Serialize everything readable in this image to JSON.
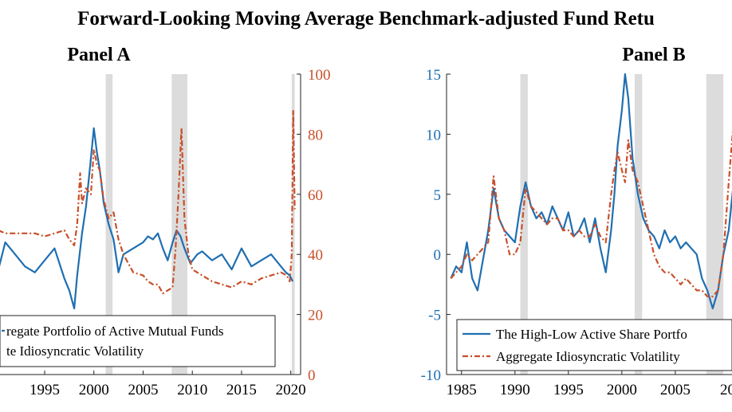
{
  "figure": {
    "title": "Forward-Looking Moving Average Benchmark-adjusted Fund Retu",
    "colors": {
      "blue": "#1f6fb2",
      "orange": "#c8502a",
      "recession": "#dcdcdc",
      "axis": "#222222"
    }
  },
  "chart_data": [
    {
      "type": "line",
      "panel_title": "Panel A",
      "x_ticks": [
        1995,
        2000,
        2005,
        2010,
        2015,
        2020
      ],
      "x_range": [
        1990.3,
        2021.0
      ],
      "y_left_range": [
        null,
        null
      ],
      "y_right_range": [
        0,
        100
      ],
      "y_right_ticks": [
        0,
        20,
        40,
        60,
        80,
        100
      ],
      "grid": false,
      "recession_bands": [
        [
          2001.2,
          2001.9
        ],
        [
          2007.9,
          2009.5
        ],
        [
          2020.1,
          2020.4
        ]
      ],
      "legend": {
        "placement": "bottom-left",
        "entries": [
          {
            "label": "regate Portfolio of Active Mutual Funds",
            "series": "blue"
          },
          {
            "label": "te Idiosyncratic Volatility",
            "series": "orange"
          }
        ]
      },
      "series": [
        {
          "color_key": "blue",
          "style": "solid",
          "axis": "right-scaled",
          "x": [
            1990.3,
            1991,
            1992,
            1993,
            1994,
            1995,
            1996,
            1997,
            1997.5,
            1998,
            1998.3,
            1998.8,
            1999.2,
            1999.7,
            2000,
            2000.3,
            2000.6,
            2001,
            2001.5,
            2002,
            2002.5,
            2003,
            2004,
            2005,
            2005.5,
            2006,
            2006.5,
            2007,
            2007.5,
            2008,
            2008.4,
            2008.8,
            2009.2,
            2009.8,
            2010.5,
            2011,
            2012,
            2013,
            2014,
            2015,
            2016,
            2017,
            2018,
            2019,
            2019.5,
            2019.9,
            2020.2
          ],
          "values": [
            35,
            44,
            40,
            36,
            34,
            38,
            42,
            32,
            28,
            22,
            33,
            47,
            56,
            72,
            82,
            74,
            68,
            57,
            50,
            45,
            34,
            40,
            42,
            44,
            46,
            45,
            47,
            42,
            38,
            44,
            48,
            46,
            42,
            37,
            40,
            41,
            38,
            40,
            35,
            42,
            36,
            38,
            40,
            36,
            34,
            33,
            31
          ]
        },
        {
          "color_key": "orange",
          "style": "dash-dot",
          "axis": "right",
          "x": [
            1990.3,
            1991,
            1992,
            1993,
            1994,
            1995,
            1996,
            1997,
            1997.5,
            1998,
            1998.3,
            1998.6,
            1998.8,
            1999.2,
            1999.7,
            2000,
            2000.3,
            2000.6,
            2001,
            2001.5,
            2002,
            2002.5,
            2003,
            2004,
            2005,
            2005.5,
            2006,
            2006.5,
            2007,
            2007.5,
            2008,
            2008.3,
            2008.6,
            2008.9,
            2009.2,
            2009.6,
            2010,
            2011,
            2012,
            2013,
            2014,
            2015,
            2016,
            2017,
            2018,
            2019,
            2019.6,
            2019.9,
            2020.1,
            2020.25,
            2020.4
          ],
          "values": [
            48,
            47,
            47,
            47,
            47,
            46,
            47,
            48,
            45,
            43,
            50,
            67,
            57,
            62,
            60,
            75,
            70,
            68,
            58,
            52,
            54,
            45,
            40,
            34,
            33,
            31,
            30,
            30,
            27,
            28,
            29,
            42,
            60,
            82,
            52,
            40,
            35,
            33,
            31,
            30,
            29,
            31,
            30,
            32,
            33,
            34,
            33,
            31,
            40,
            88,
            55
          ]
        }
      ]
    },
    {
      "type": "line",
      "panel_title": "Panel B",
      "x_ticks": [
        1985,
        1990,
        1995,
        2000,
        2005
      ],
      "x_tick_partial": "20",
      "x_range": [
        1983.6,
        2011.2
      ],
      "y_left_range": [
        -10,
        15
      ],
      "y_left_ticks": [
        -10,
        -5,
        0,
        5,
        10,
        15
      ],
      "grid": false,
      "recession_bands": [
        [
          1990.5,
          1991.2
        ],
        [
          2001.2,
          2001.9
        ],
        [
          2007.9,
          2009.5
        ]
      ],
      "legend": {
        "placement": "bottom-left",
        "entries": [
          {
            "label": "The High-Low Active Share Portfo",
            "series": "blue"
          },
          {
            "label": "Aggregate Idiosyncratic Volatility",
            "series": "orange"
          }
        ]
      },
      "series": [
        {
          "color_key": "blue",
          "style": "solid",
          "x": [
            1984,
            1984.5,
            1985,
            1985.5,
            1986,
            1986.5,
            1987,
            1987.5,
            1988,
            1988.5,
            1989,
            1989.5,
            1990,
            1990.5,
            1991,
            1991.5,
            1992,
            1992.5,
            1993,
            1993.5,
            1994,
            1994.5,
            1995,
            1995.5,
            1996,
            1996.5,
            1997,
            1997.5,
            1998,
            1998.5,
            1999,
            1999.3,
            1999.6,
            2000,
            2000.3,
            2000.6,
            2001,
            2001.5,
            2002,
            2002.5,
            2003,
            2003.5,
            2004,
            2004.5,
            2005,
            2005.5,
            2006,
            2006.5,
            2007,
            2007.5,
            2008,
            2008.5,
            2009,
            2009.5,
            2010,
            2010.4,
            2010.8,
            2011.2
          ],
          "values": [
            -2,
            -1,
            -1.5,
            1,
            -2,
            -3,
            -0.5,
            2,
            5.5,
            3,
            2,
            1.5,
            1,
            4,
            6,
            4,
            3,
            3.5,
            2.5,
            4,
            3,
            2,
            3.5,
            1.5,
            2,
            3,
            1,
            3,
            0.5,
            -1.5,
            2,
            5,
            9,
            12,
            15,
            13,
            8,
            5,
            3,
            2,
            1.5,
            0.5,
            2,
            1,
            1.5,
            0.5,
            1,
            0.5,
            0,
            -2,
            -3,
            -4.5,
            -3,
            0,
            2,
            5.5,
            2,
            1
          ]
        },
        {
          "color_key": "orange",
          "style": "dash-dot",
          "x": [
            1984,
            1984.5,
            1985,
            1985.5,
            1986,
            1986.5,
            1987,
            1987.5,
            1988,
            1988.5,
            1989,
            1989.5,
            1990,
            1990.5,
            1991,
            1991.5,
            1992,
            1992.5,
            1993,
            1993.5,
            1994,
            1994.5,
            1995,
            1995.5,
            1996,
            1996.5,
            1997,
            1997.5,
            1998,
            1998.5,
            1999,
            1999.3,
            1999.6,
            2000,
            2000.3,
            2000.6,
            2001,
            2001.5,
            2002,
            2002.5,
            2003,
            2003.5,
            2004,
            2004.5,
            2005,
            2005.5,
            2006,
            2006.5,
            2007,
            2007.5,
            2008,
            2008.5,
            2009,
            2009.5,
            2010,
            2010.4,
            2010.8,
            2011.2
          ],
          "values": [
            -2,
            -1.5,
            -1,
            0,
            -0.5,
            0,
            0.5,
            1,
            6.5,
            3,
            2,
            0,
            0,
            1,
            5.5,
            4,
            3.5,
            3,
            2.5,
            3,
            3,
            2,
            2,
            1.5,
            2,
            1.5,
            1.5,
            2.5,
            1.5,
            1,
            5,
            7,
            8.5,
            7,
            6,
            9.5,
            7,
            6,
            4,
            2,
            0,
            -1,
            -1.5,
            -1.5,
            -2,
            -2.5,
            -2,
            -2.5,
            -3,
            -3,
            -3.5,
            -3.5,
            -3,
            0,
            6,
            10.5,
            7,
            2
          ]
        }
      ]
    }
  ]
}
